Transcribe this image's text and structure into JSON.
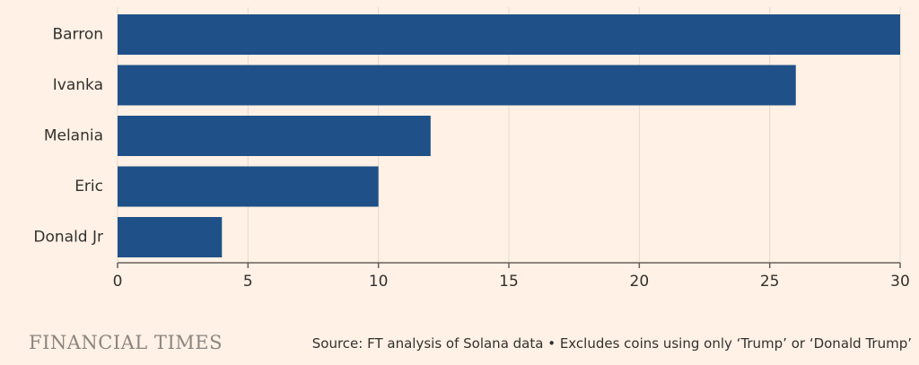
{
  "chart_data": {
    "type": "bar",
    "orientation": "horizontal",
    "categories": [
      "Barron",
      "Ivanka",
      "Melania",
      "Eric",
      "Donald Jr"
    ],
    "values": [
      30,
      26,
      12,
      10,
      4
    ],
    "xlim": [
      0,
      30
    ],
    "xticks": [
      0,
      5,
      10,
      15,
      20,
      25,
      30
    ],
    "grid": true,
    "bar_color": "#1f5188"
  },
  "footer": {
    "brand": "FINANCIAL TIMES",
    "source": "Source: FT analysis of Solana data • Excludes coins using only ‘Trump’ or ‘Donald Trump’"
  }
}
